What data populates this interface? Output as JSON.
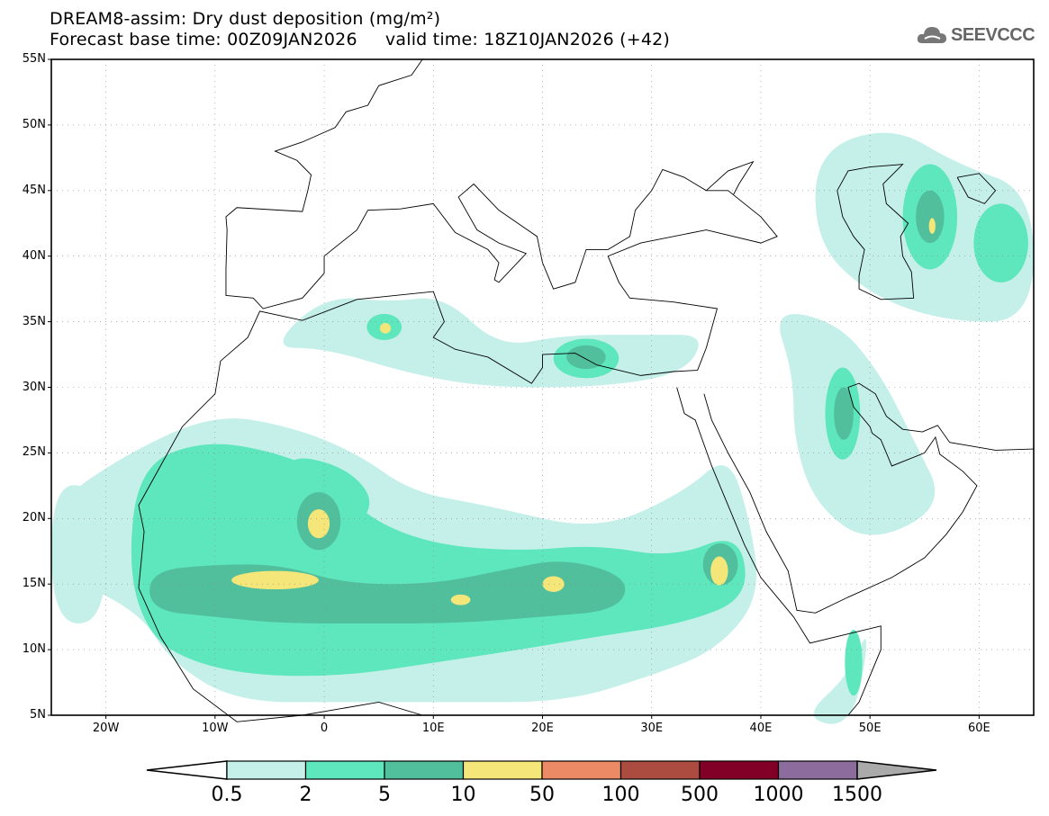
{
  "header": {
    "title": "DREAM8-assim: Dry dust deposition (mg/m²)",
    "subtitle": "Forecast base time: 00Z09JAN2026     valid time: 18Z10JAN2026 (+42)",
    "logo_text": "SEEVCCC"
  },
  "map": {
    "lon_range": [
      -25,
      65
    ],
    "lat_range": [
      5,
      55
    ],
    "lat_labels": [
      "55N",
      "50N",
      "45N",
      "40N",
      "35N",
      "30N",
      "25N",
      "20N",
      "15N",
      "10N",
      "5N"
    ],
    "lon_labels": [
      "20W",
      "10W",
      "0",
      "10E",
      "20E",
      "30E",
      "40E",
      "50E",
      "60E"
    ]
  },
  "colorbar": {
    "labels": [
      "0.5",
      "2",
      "5",
      "10",
      "50",
      "100",
      "500",
      "1000",
      "1500"
    ],
    "colors": [
      "#c4f0e9",
      "#5ee6bd",
      "#52bf9c",
      "#f5e67a",
      "#ec8a66",
      "#ac4c40",
      "#820028",
      "#8c6c9c"
    ],
    "under_color": "#ffffff",
    "over_color": "#aaaaaa"
  }
}
